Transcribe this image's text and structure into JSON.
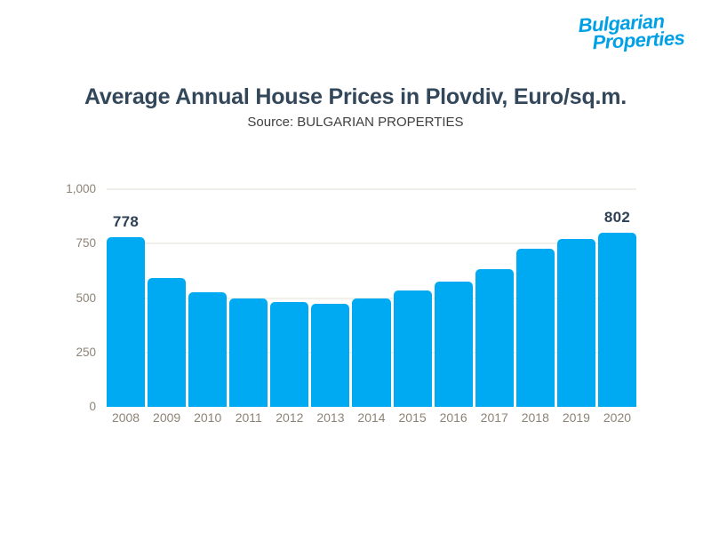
{
  "logo": {
    "line1": "Bulgarian",
    "line2": "Properties",
    "color": "#00A0E6"
  },
  "header": {
    "title": "Average Annual House Prices in Plovdiv, Euro/sq.m.",
    "subtitle": "Source: BULGARIAN PROPERTIES"
  },
  "chart_data": {
    "type": "bar",
    "title": "Average Annual House Prices in Plovdiv, Euro/sq.m.",
    "subtitle": "Source: BULGARIAN PROPERTIES",
    "categories": [
      "2008",
      "2009",
      "2010",
      "2011",
      "2012",
      "2013",
      "2014",
      "2015",
      "2016",
      "2017",
      "2018",
      "2019",
      "2020"
    ],
    "values": [
      778,
      590,
      527,
      497,
      480,
      475,
      498,
      533,
      576,
      634,
      725,
      772,
      802
    ],
    "value_labels": [
      {
        "category": "2008",
        "text": "778"
      },
      {
        "category": "2020",
        "text": "802"
      }
    ],
    "xlabel": "",
    "ylabel": "",
    "ylim": [
      0,
      1000
    ],
    "yticks": [
      "0",
      "250",
      "500",
      "750",
      "1,000"
    ],
    "ytick_values": [
      0,
      250,
      500,
      750,
      1000
    ],
    "grid": true,
    "legend": "none",
    "bar_color": "#00AAF2",
    "gridline_color": "#F1EFE9",
    "tick_color": "#8D8476",
    "title_color": "#33475B",
    "value_label_color": "#2E4154"
  }
}
